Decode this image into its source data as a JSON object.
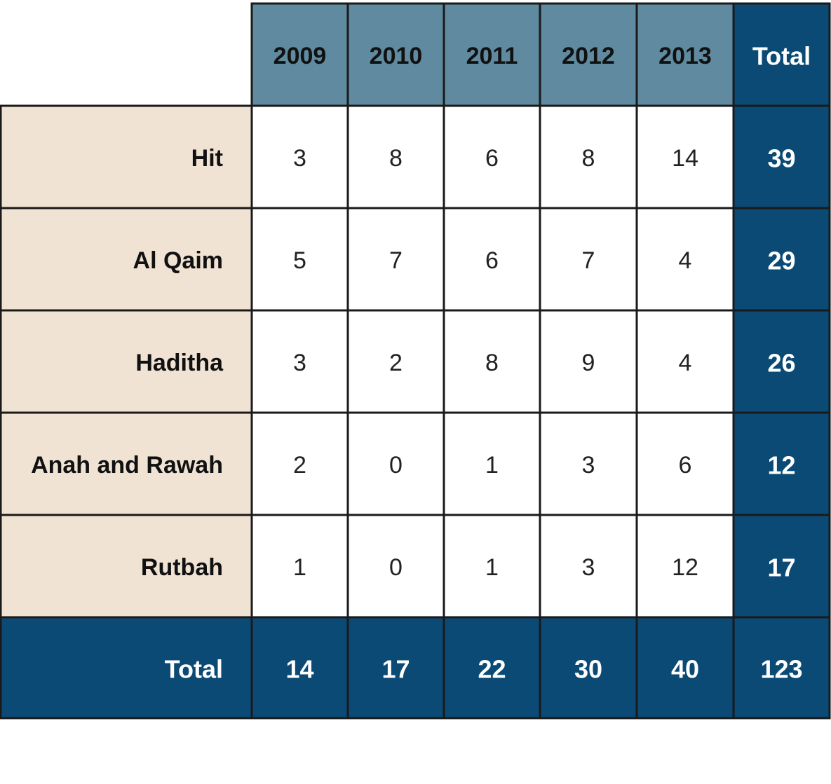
{
  "chart_data": {
    "type": "table",
    "columns": [
      "2009",
      "2010",
      "2011",
      "2012",
      "2013"
    ],
    "total_label": "Total",
    "rows": [
      {
        "label": "Hit",
        "values": [
          3,
          8,
          6,
          8,
          14
        ],
        "total": 39
      },
      {
        "label": "Al Qaim",
        "values": [
          5,
          7,
          6,
          7,
          4
        ],
        "total": 29
      },
      {
        "label": "Haditha",
        "values": [
          3,
          2,
          8,
          9,
          4
        ],
        "total": 26
      },
      {
        "label": "Anah and Rawah",
        "values": [
          2,
          0,
          1,
          3,
          6
        ],
        "total": 12
      },
      {
        "label": "Rutbah",
        "values": [
          1,
          0,
          1,
          3,
          12
        ],
        "total": 17
      }
    ],
    "totals_row": {
      "label": "Total",
      "values": [
        14,
        17,
        22,
        30,
        40
      ],
      "total": 123
    }
  },
  "colors": {
    "year_header_bg": "#5f8aa0",
    "total_bg": "#0b4a75",
    "row_label_bg": "#f0e3d4",
    "cell_bg": "#ffffff",
    "border": "#1a1a1a"
  }
}
